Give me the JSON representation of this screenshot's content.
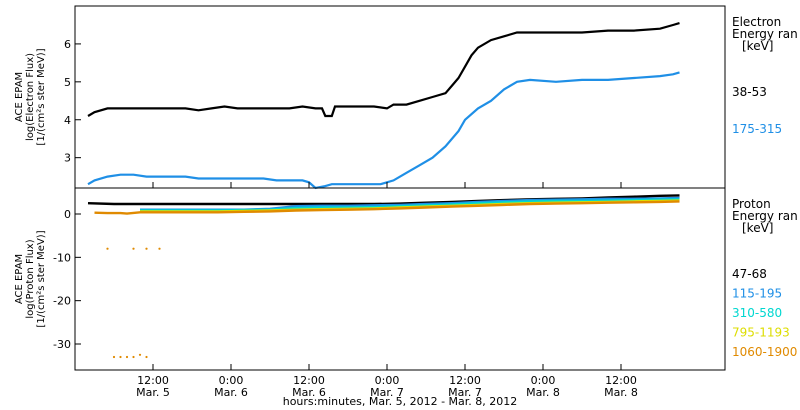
{
  "chart_data": [
    {
      "type": "line",
      "panel": "electron",
      "ylabel": [
        "ACE EPAM",
        "log(Electron Flux)",
        "[1/(cm²s ster MeV)]"
      ],
      "legend_title": [
        "Electron",
        "Energy ran",
        "[keV]"
      ],
      "ylim": [
        2.2,
        7.0
      ],
      "yticks": [
        3,
        4,
        5,
        6
      ],
      "grid": false,
      "legend_position": "right",
      "series": [
        {
          "name": "38-53",
          "color": "#000000",
          "points": [
            [
              2.0,
              4.1
            ],
            [
              3.0,
              4.2
            ],
            [
              5.0,
              4.3
            ],
            [
              7.0,
              4.3
            ],
            [
              9.0,
              4.3
            ],
            [
              11.0,
              4.3
            ],
            [
              13.0,
              4.3
            ],
            [
              15.0,
              4.3
            ],
            [
              17.0,
              4.3
            ],
            [
              19.0,
              4.25
            ],
            [
              21.0,
              4.3
            ],
            [
              23.0,
              4.35
            ],
            [
              25.0,
              4.3
            ],
            [
              27.0,
              4.3
            ],
            [
              29.0,
              4.3
            ],
            [
              31.0,
              4.3
            ],
            [
              33.0,
              4.3
            ],
            [
              35.0,
              4.35
            ],
            [
              37.0,
              4.3
            ],
            [
              38.0,
              4.3
            ],
            [
              38.5,
              4.1
            ],
            [
              39.5,
              4.1
            ],
            [
              40.0,
              4.35
            ],
            [
              42.0,
              4.35
            ],
            [
              44.0,
              4.35
            ],
            [
              46.0,
              4.35
            ],
            [
              48.0,
              4.3
            ],
            [
              49.0,
              4.4
            ],
            [
              51.0,
              4.4
            ],
            [
              53.0,
              4.5
            ],
            [
              55.0,
              4.6
            ],
            [
              57.0,
              4.7
            ],
            [
              58.0,
              4.9
            ],
            [
              59.0,
              5.1
            ],
            [
              60.0,
              5.4
            ],
            [
              61.0,
              5.7
            ],
            [
              62.0,
              5.9
            ],
            [
              64.0,
              6.1
            ],
            [
              66.0,
              6.2
            ],
            [
              68.0,
              6.3
            ],
            [
              70.0,
              6.3
            ],
            [
              74.0,
              6.3
            ],
            [
              78.0,
              6.3
            ],
            [
              82.0,
              6.35
            ],
            [
              86.0,
              6.35
            ],
            [
              90.0,
              6.4
            ],
            [
              92.0,
              6.5
            ],
            [
              93.0,
              6.55
            ]
          ]
        },
        {
          "name": "175-315",
          "color": "#1f8fe6",
          "points": [
            [
              2.0,
              2.3
            ],
            [
              3.0,
              2.4
            ],
            [
              5.0,
              2.5
            ],
            [
              7.0,
              2.55
            ],
            [
              9.0,
              2.55
            ],
            [
              11.0,
              2.5
            ],
            [
              13.0,
              2.5
            ],
            [
              15.0,
              2.5
            ],
            [
              17.0,
              2.5
            ],
            [
              19.0,
              2.45
            ],
            [
              21.0,
              2.45
            ],
            [
              23.0,
              2.45
            ],
            [
              25.0,
              2.45
            ],
            [
              27.0,
              2.45
            ],
            [
              29.0,
              2.45
            ],
            [
              31.0,
              2.4
            ],
            [
              33.0,
              2.4
            ],
            [
              35.0,
              2.4
            ],
            [
              36.0,
              2.35
            ],
            [
              37.0,
              2.2
            ],
            [
              38.5,
              2.25
            ],
            [
              39.5,
              2.3
            ],
            [
              41.0,
              2.3
            ],
            [
              43.0,
              2.3
            ],
            [
              45.0,
              2.3
            ],
            [
              47.0,
              2.3
            ],
            [
              49.0,
              2.4
            ],
            [
              51.0,
              2.6
            ],
            [
              53.0,
              2.8
            ],
            [
              55.0,
              3.0
            ],
            [
              57.0,
              3.3
            ],
            [
              59.0,
              3.7
            ],
            [
              60.0,
              4.0
            ],
            [
              62.0,
              4.3
            ],
            [
              64.0,
              4.5
            ],
            [
              66.0,
              4.8
            ],
            [
              68.0,
              5.0
            ],
            [
              70.0,
              5.05
            ],
            [
              74.0,
              5.0
            ],
            [
              78.0,
              5.05
            ],
            [
              82.0,
              5.05
            ],
            [
              86.0,
              5.1
            ],
            [
              90.0,
              5.15
            ],
            [
              92.0,
              5.2
            ],
            [
              93.0,
              5.25
            ]
          ]
        }
      ]
    },
    {
      "type": "scatter",
      "panel": "proton",
      "ylabel": [
        "ACE EPAM",
        "log(Proton Flux)",
        "[1/(cm²s ster MeV)]"
      ],
      "legend_title": [
        "Proton",
        "Energy ran",
        "[keV]"
      ],
      "ylim": [
        -36,
        6
      ],
      "yticks": [
        0,
        -10,
        -20,
        -30
      ],
      "grid": false,
      "legend_position": "right",
      "xlabel": "hours:minutes, Mar. 5, 2012 - Mar. 8, 2012",
      "xlim": [
        0,
        100
      ],
      "xticks": [
        {
          "x": 12,
          "line1": "12:00",
          "line2": "Mar. 5"
        },
        {
          "x": 24,
          "line1": "0:00",
          "line2": "Mar. 6"
        },
        {
          "x": 36,
          "line1": "12:00",
          "line2": "Mar. 6"
        },
        {
          "x": 48,
          "line1": "0:00",
          "line2": "Mar. 7"
        },
        {
          "x": 60,
          "line1": "12:00",
          "line2": "Mar. 7"
        },
        {
          "x": 72,
          "line1": "0:00",
          "line2": "Mar. 8"
        },
        {
          "x": 84,
          "line1": "12:00",
          "line2": "Mar. 8"
        }
      ],
      "series": [
        {
          "name": "47-68",
          "color": "#000000",
          "points": [
            [
              2,
              2.5
            ],
            [
              6,
              2.3
            ],
            [
              10,
              2.3
            ],
            [
              14,
              2.3
            ],
            [
              18,
              2.3
            ],
            [
              22,
              2.3
            ],
            [
              26,
              2.3
            ],
            [
              30,
              2.3
            ],
            [
              34,
              2.3
            ],
            [
              38,
              2.3
            ],
            [
              42,
              2.3
            ],
            [
              46,
              2.3
            ],
            [
              50,
              2.4
            ],
            [
              54,
              2.6
            ],
            [
              58,
              2.8
            ],
            [
              62,
              3.0
            ],
            [
              66,
              3.2
            ],
            [
              70,
              3.4
            ],
            [
              74,
              3.5
            ],
            [
              78,
              3.6
            ],
            [
              82,
              3.8
            ],
            [
              86,
              4.0
            ],
            [
              90,
              4.2
            ],
            [
              93,
              4.3
            ]
          ]
        },
        {
          "name": "115-195",
          "color": "#1f8fe6",
          "points": [
            [
              10,
              1.0
            ],
            [
              14,
              1.0
            ],
            [
              18,
              1.0
            ],
            [
              22,
              1.0
            ],
            [
              26,
              1.0
            ],
            [
              30,
              1.2
            ],
            [
              34,
              1.8
            ],
            [
              38,
              1.9
            ],
            [
              42,
              1.9
            ],
            [
              46,
              2.0
            ],
            [
              50,
              2.1
            ],
            [
              54,
              2.3
            ],
            [
              58,
              2.5
            ],
            [
              62,
              2.8
            ],
            [
              66,
              3.0
            ],
            [
              70,
              3.2
            ],
            [
              74,
              3.3
            ],
            [
              78,
              3.4
            ],
            [
              82,
              3.5
            ],
            [
              86,
              3.5
            ],
            [
              90,
              3.6
            ],
            [
              93,
              3.7
            ]
          ]
        },
        {
          "name": "310-580",
          "color": "#00d7d0",
          "points": [
            [
              10,
              0.8
            ],
            [
              14,
              0.8
            ],
            [
              18,
              0.8
            ],
            [
              22,
              0.8
            ],
            [
              26,
              0.9
            ],
            [
              30,
              1.0
            ],
            [
              34,
              1.4
            ],
            [
              38,
              1.5
            ],
            [
              42,
              1.5
            ],
            [
              46,
              1.6
            ],
            [
              50,
              1.8
            ],
            [
              54,
              2.0
            ],
            [
              58,
              2.2
            ],
            [
              62,
              2.5
            ],
            [
              66,
              2.7
            ],
            [
              70,
              2.9
            ],
            [
              74,
              3.0
            ],
            [
              78,
              3.0
            ],
            [
              82,
              3.1
            ],
            [
              86,
              3.2
            ],
            [
              90,
              3.3
            ],
            [
              93,
              3.4
            ]
          ]
        },
        {
          "name": "795-1193",
          "color": "#dddd00",
          "points": [
            [
              10,
              0.6
            ],
            [
              14,
              0.6
            ],
            [
              18,
              0.6
            ],
            [
              22,
              0.6
            ],
            [
              26,
              0.7
            ],
            [
              30,
              0.8
            ],
            [
              34,
              1.0
            ],
            [
              38,
              1.1
            ],
            [
              42,
              1.2
            ],
            [
              46,
              1.3
            ],
            [
              50,
              1.5
            ],
            [
              54,
              1.7
            ],
            [
              58,
              1.9
            ],
            [
              62,
              2.1
            ],
            [
              66,
              2.3
            ],
            [
              70,
              2.5
            ],
            [
              74,
              2.6
            ],
            [
              78,
              2.7
            ],
            [
              82,
              2.8
            ],
            [
              86,
              2.9
            ],
            [
              90,
              3.0
            ],
            [
              93,
              3.1
            ]
          ]
        },
        {
          "name": "1060-1900",
          "color": "#e08a00",
          "points": [
            [
              3,
              0.3
            ],
            [
              5,
              0.2
            ],
            [
              7,
              0.2
            ],
            [
              8,
              0.1
            ],
            [
              10,
              0.4
            ],
            [
              14,
              0.4
            ],
            [
              18,
              0.4
            ],
            [
              22,
              0.4
            ],
            [
              26,
              0.5
            ],
            [
              30,
              0.6
            ],
            [
              34,
              0.8
            ],
            [
              38,
              0.9
            ],
            [
              42,
              1.0
            ],
            [
              46,
              1.1
            ],
            [
              50,
              1.3
            ],
            [
              54,
              1.5
            ],
            [
              58,
              1.7
            ],
            [
              62,
              1.9
            ],
            [
              66,
              2.1
            ],
            [
              70,
              2.3
            ],
            [
              74,
              2.4
            ],
            [
              78,
              2.5
            ],
            [
              82,
              2.6
            ],
            [
              86,
              2.7
            ],
            [
              90,
              2.8
            ],
            [
              93,
              2.9
            ],
            [
              5,
              -8
            ],
            [
              9,
              -8
            ],
            [
              11,
              -8
            ],
            [
              13,
              -8
            ],
            [
              6,
              -33
            ],
            [
              7,
              -33
            ],
            [
              8,
              -33
            ],
            [
              9,
              -33
            ],
            [
              10,
              -32.5
            ],
            [
              11,
              -33
            ]
          ]
        }
      ]
    }
  ]
}
